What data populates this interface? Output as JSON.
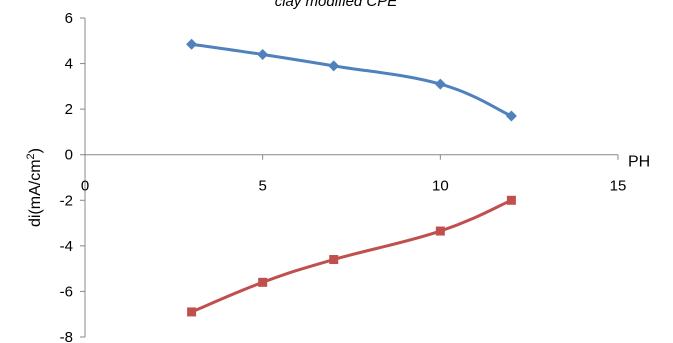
{
  "chart_data": {
    "type": "line",
    "title": "clay modified CPE",
    "xlabel": "PH",
    "ylabel": "di(mA/cm²)",
    "x": [
      3,
      5,
      7,
      10,
      12
    ],
    "xlim": [
      0,
      15
    ],
    "ylim": [
      -8,
      6
    ],
    "xticks": [
      "0",
      "5",
      "10",
      "15"
    ],
    "yticks": [
      "6",
      "4",
      "2",
      "0",
      "-2",
      "-4",
      "-6",
      "-8"
    ],
    "grid": false,
    "legend": "none",
    "series": [
      {
        "values": [
          4.85,
          4.4,
          3.9,
          3.1,
          1.7
        ],
        "color": "#4F81BD",
        "marker": "diamond"
      },
      {
        "values": [
          -6.9,
          -5.6,
          -4.6,
          -3.35,
          -2.0
        ],
        "color": "#C0504D",
        "marker": "square"
      }
    ]
  }
}
